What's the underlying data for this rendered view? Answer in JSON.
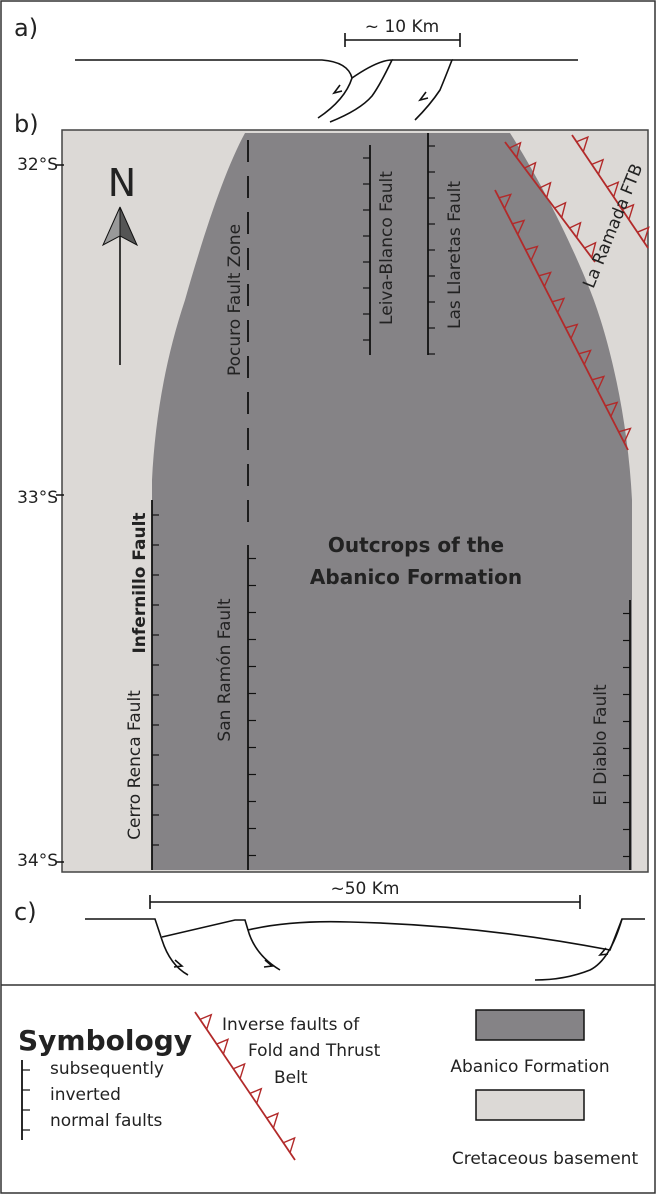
{
  "sections": {
    "a": "a)",
    "b": "b)",
    "c": "c)"
  },
  "scale_a": "~ 10 Km",
  "scale_c": "~50 Km",
  "latitudes": [
    "32°S",
    "33°S",
    "34°S"
  ],
  "north": "N",
  "faults": {
    "pocuro": "Pocuro Fault Zone",
    "leiva_blanco": "Leiva-Blanco Fault",
    "las_llaretas": "Las Llaretas Fault",
    "la_ramada": "La Ramada FTB",
    "infernillo": "Infernillo Fault",
    "cerro_renca": "Cerro Renca Fault",
    "san_ramon": "San Ramón Fault",
    "el_diablo": "El Diablo Fault"
  },
  "outcrops_label": [
    "Outcrops of the",
    "Abanico Formation"
  ],
  "symbology": {
    "title": "Symbology",
    "normal_faults": [
      "subsequently",
      "inverted",
      "normal faults"
    ],
    "inverse_faults": [
      "Inverse faults of",
      "Fold and Thrust",
      "Belt"
    ],
    "abanico": "Abanico Formation",
    "cretaceous": "Cretaceous basement"
  }
}
